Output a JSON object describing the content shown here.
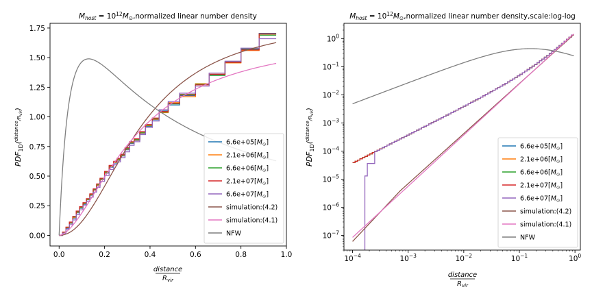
{
  "chart_data": [
    {
      "type": "line",
      "title": "M_host = 10^12 M_⊙,normalized linear number density",
      "title_parts": {
        "m": "M",
        "host": "host",
        "eq": " = 10",
        "exp": "12",
        "msun": "M",
        "sun": "⊙",
        "rest": ",normalized linear number density"
      },
      "xlabel": "distance / R_vir",
      "xlabel_parts": {
        "num": "distance",
        "den": "R",
        "den_sub": "vir"
      },
      "ylabel": "PDF_1D(distance / R_vir)",
      "ylabel_parts": {
        "pdf": "PDF",
        "sub": "1D",
        "num": "distance",
        "den": "R",
        "den_sub": "vir"
      },
      "xscale": "linear",
      "yscale": "linear",
      "xlim": [
        -0.04,
        1.0
      ],
      "ylim": [
        -0.09,
        1.79
      ],
      "xticks": [
        0.0,
        0.2,
        0.4,
        0.6,
        0.8,
        1.0
      ],
      "xtick_labels": [
        "0.0",
        "0.2",
        "0.4",
        "0.6",
        "0.8",
        "1.0"
      ],
      "yticks": [
        0.0,
        0.25,
        0.5,
        0.75,
        1.0,
        1.25,
        1.5,
        1.75
      ],
      "ytick_labels": [
        "0.00",
        "0.25",
        "0.50",
        "0.75",
        "1.00",
        "1.25",
        "1.50",
        "1.75"
      ],
      "legend": "lower right"
    },
    {
      "type": "line",
      "title": "M_host = 10^12 M_⊙,normalized linear number density,scale:log-log",
      "title_parts": {
        "m": "M",
        "host": "host",
        "eq": " = 10",
        "exp": "12",
        "msun": "M",
        "sun": "⊙",
        "rest": ",normalized linear number density,scale:log-log"
      },
      "xlabel": "distance / R_vir",
      "xlabel_parts": {
        "num": "distance",
        "den": "R",
        "den_sub": "vir"
      },
      "ylabel": "PDF_1D(distance / R_vir)",
      "ylabel_parts": {
        "pdf": "PDF",
        "sub": "1D",
        "num": "distance",
        "den": "R",
        "den_sub": "vir"
      },
      "xscale": "log",
      "yscale": "log",
      "xlim": [
        7e-05,
        1.25
      ],
      "ylim": [
        3e-08,
        3.5
      ],
      "xticks": [
        0.0001,
        0.001,
        0.01,
        0.1,
        1
      ],
      "xtick_labels": [
        {
          "b": "10",
          "e": "−4"
        },
        {
          "b": "10",
          "e": "−3"
        },
        {
          "b": "10",
          "e": "−2"
        },
        {
          "b": "10",
          "e": "−1"
        },
        {
          "b": "10",
          "e": "0"
        }
      ],
      "yticks": [
        1e-07,
        1e-06,
        1e-05,
        0.0001,
        0.001,
        0.01,
        0.1,
        1
      ],
      "ytick_labels": [
        {
          "b": "10",
          "e": "−7"
        },
        {
          "b": "10",
          "e": "−6"
        },
        {
          "b": "10",
          "e": "−5"
        },
        {
          "b": "10",
          "e": "−4"
        },
        {
          "b": "10",
          "e": "−3"
        },
        {
          "b": "10",
          "e": "−2"
        },
        {
          "b": "10",
          "e": "−1"
        },
        {
          "b": "10",
          "e": "0"
        }
      ],
      "legend": "lower right"
    }
  ],
  "series": [
    {
      "name": "6.6e+05[M_⊙]",
      "label_parts": {
        "t": "6.6e+05[",
        "m": "M",
        "s": "⊙",
        "c": "]"
      },
      "color": "#1f77b4",
      "kind": "step",
      "values": [
        0.0,
        0.022,
        0.06,
        0.101,
        0.145,
        0.19,
        0.228,
        0.262,
        0.3,
        0.338,
        0.38,
        0.42,
        0.47,
        0.525,
        0.575,
        0.61,
        0.635,
        0.67,
        0.722,
        0.775,
        0.8,
        0.86,
        0.92,
        0.975,
        1.05,
        1.1,
        1.18,
        1.27,
        1.355,
        1.46,
        1.57,
        1.705
      ],
      "log_loweps": 0.037
    },
    {
      "name": "2.1e+06[M_⊙]",
      "label_parts": {
        "t": "2.1e+06[",
        "m": "M",
        "s": "⊙",
        "c": "]"
      },
      "color": "#ff7f0e",
      "kind": "step",
      "values": [
        0.0,
        0.024,
        0.065,
        0.104,
        0.15,
        0.195,
        0.233,
        0.268,
        0.303,
        0.342,
        0.384,
        0.424,
        0.474,
        0.53,
        0.58,
        0.614,
        0.64,
        0.675,
        0.728,
        0.78,
        0.805,
        0.865,
        0.925,
        0.98,
        1.035,
        1.12,
        1.17,
        1.28,
        1.36,
        1.455,
        1.56,
        1.7
      ],
      "log_loweps": 0.035
    },
    {
      "name": "6.6e+06[M_⊙]",
      "label_parts": {
        "t": "6.6e+06[",
        "m": "M",
        "s": "⊙",
        "c": "]"
      },
      "color": "#2ca02c",
      "kind": "step",
      "values": [
        0.0,
        0.026,
        0.068,
        0.108,
        0.155,
        0.2,
        0.238,
        0.272,
        0.306,
        0.346,
        0.388,
        0.43,
        0.478,
        0.535,
        0.585,
        0.62,
        0.645,
        0.68,
        0.735,
        0.785,
        0.81,
        0.87,
        0.93,
        0.985,
        1.04,
        1.11,
        1.19,
        1.275,
        1.35,
        1.465,
        1.575,
        1.69
      ],
      "log_loweps": 0.036
    },
    {
      "name": "2.1e+07[M_⊙]",
      "label_parts": {
        "t": "2.1e+07[",
        "m": "M",
        "s": "⊙",
        "c": "]"
      },
      "color": "#d62728",
      "kind": "step",
      "values": [
        0.0,
        0.028,
        0.07,
        0.112,
        0.16,
        0.205,
        0.242,
        0.276,
        0.31,
        0.35,
        0.392,
        0.434,
        0.482,
        0.54,
        0.59,
        0.625,
        0.65,
        0.684,
        0.74,
        0.79,
        0.815,
        0.875,
        0.935,
        0.99,
        1.045,
        1.115,
        1.185,
        1.27,
        1.36,
        1.46,
        1.565,
        1.7
      ],
      "log_loweps": 0.038
    },
    {
      "name": "6.6e+07[M_⊙]",
      "label_parts": {
        "t": "6.6e+07[",
        "m": "M",
        "s": "⊙",
        "c": "]"
      },
      "color": "#9467bd",
      "kind": "step",
      "values": [
        0.0,
        0.018,
        0.052,
        0.09,
        0.13,
        0.175,
        0.215,
        0.25,
        0.285,
        0.322,
        0.365,
        0.405,
        0.455,
        0.505,
        0.555,
        0.595,
        0.62,
        0.655,
        0.705,
        0.76,
        0.79,
        0.85,
        0.91,
        0.965,
        1.06,
        1.13,
        1.2,
        1.26,
        1.37,
        1.47,
        1.58,
        1.66
      ],
      "log_special": true
    },
    {
      "name": "simulation:(4.2)",
      "label_parts": {
        "t": "simulation:(4.2)"
      },
      "color": "#8c564b",
      "kind": "model",
      "a": 2.1,
      "b": 0.9,
      "xmax": 0.955
    },
    {
      "name": "simulation:(4.1)",
      "label_parts": {
        "t": "simulation:(4.1)"
      },
      "color": "#e377c2",
      "kind": "model",
      "a": 1.7,
      "b": 1.0,
      "xmax": 0.955
    },
    {
      "name": "NFW",
      "label_parts": {
        "t": "NFW"
      },
      "color": "#7f7f7f",
      "kind": "nfw",
      "peak_x": 0.13,
      "peak_y": 1.49,
      "xmax": 0.955
    }
  ],
  "bin_edges": [
    0.0,
    0.015,
    0.03,
    0.045,
    0.06,
    0.075,
    0.09,
    0.105,
    0.12,
    0.135,
    0.15,
    0.165,
    0.18,
    0.2,
    0.22,
    0.24,
    0.255,
    0.27,
    0.29,
    0.31,
    0.33,
    0.355,
    0.38,
    0.41,
    0.44,
    0.48,
    0.53,
    0.6,
    0.66,
    0.73,
    0.8,
    0.88,
    0.955
  ]
}
